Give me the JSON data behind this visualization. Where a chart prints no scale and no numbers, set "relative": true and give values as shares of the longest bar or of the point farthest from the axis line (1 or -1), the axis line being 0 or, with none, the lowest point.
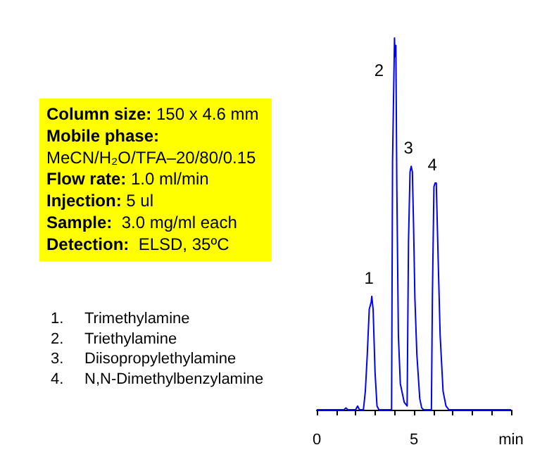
{
  "chart_data": {
    "type": "line",
    "relative": true,
    "x": [
      0,
      1.4,
      1.5,
      1.6,
      2.0,
      2.1,
      2.2,
      2.4,
      2.5,
      2.6,
      2.7,
      2.8,
      2.83,
      2.9,
      3.0,
      3.1,
      3.2,
      3.85,
      3.9,
      3.95,
      4.0,
      4.03,
      4.07,
      4.12,
      4.2,
      4.3,
      4.5,
      4.65,
      4.72,
      4.8,
      4.86,
      4.92,
      4.98,
      5.05,
      5.15,
      5.3,
      5.4,
      5.5,
      5.9,
      5.95,
      6.03,
      6.09,
      6.15,
      6.25,
      6.35,
      6.5,
      6.65,
      6.8,
      10
    ],
    "series": [
      {
        "color": "#0000ff",
        "values": [
          0,
          0,
          0.005,
          0,
          0,
          0.01,
          0,
          0,
          0.05,
          0.15,
          0.27,
          0.29,
          0.305,
          0.27,
          0.1,
          0.01,
          0,
          0,
          0.67,
          0.67,
          1.0,
          0.95,
          0.98,
          0.6,
          0.2,
          0.07,
          0.02,
          0.01,
          0.45,
          0.64,
          0.655,
          0.64,
          0.5,
          0.3,
          0.15,
          0.03,
          0.005,
          0,
          0,
          0.3,
          0.6,
          0.61,
          0.61,
          0.4,
          0.2,
          0.05,
          0.01,
          0,
          0
        ]
      }
    ],
    "xlim": [
      0,
      10
    ],
    "xticks": [
      0,
      {
        "value": 1,
        "label": null
      },
      {
        "value": 2,
        "label": null
      },
      {
        "value": 3,
        "label": null
      },
      {
        "value": 4,
        "label": null
      },
      5,
      {
        "value": 6,
        "label": null
      },
      {
        "value": 7,
        "label": null
      },
      {
        "value": 8,
        "label": null
      },
      {
        "value": 9,
        "label": null
      },
      {
        "value": 10,
        "label": "min"
      }
    ],
    "grid": false,
    "marker": "none",
    "line_style": "solid",
    "annotations": [
      {
        "text": "1",
        "x": 2.83,
        "y": 0.305
      },
      {
        "text": "2",
        "x": 4.0,
        "y": 1.0
      },
      {
        "text": "3",
        "x": 4.86,
        "y": 0.655
      },
      {
        "text": "4",
        "x": 6.09,
        "y": 0.61
      },
      "Column size: 150 x 4.6 mm",
      "Mobile phase:",
      "MeCN/H₂O/TFA–20/80/0.15",
      "Flow rate: 1.0 ml/min",
      "Injection: 5 ul",
      "Sample:  3.0 mg/ml each",
      "Detection:  ELSD, 35ºC",
      "1.   Trimethylamine",
      "2.   Triethylamine",
      "3.   Diisopropylethylamine",
      "4.   N,N-Dimethylbenzylamine"
    ]
  }
}
